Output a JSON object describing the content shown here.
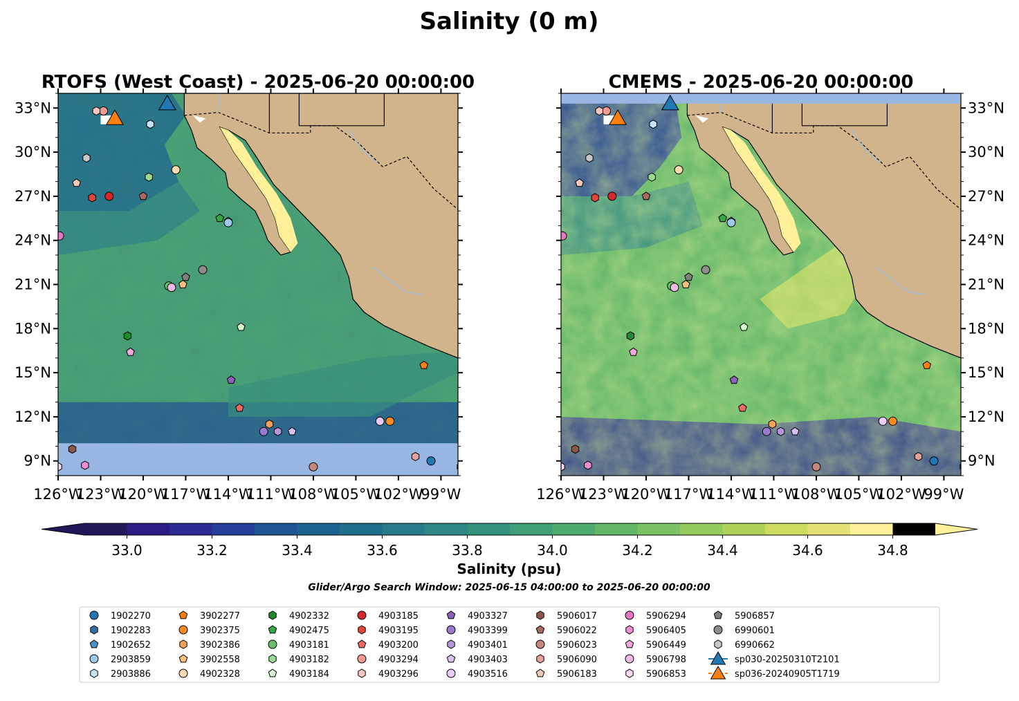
{
  "figure": {
    "suptitle": "Salinity (0 m)",
    "search_window": "Glider/Argo Search Window: 2025-06-15 04:00:00 to 2025-06-20 00:00:00"
  },
  "colors": {
    "land": "#d2b48c",
    "nodata": "#97b6e1",
    "rivers": "#a7bcd8",
    "scale": [
      "#221859",
      "#2b1b85",
      "#2c2b95",
      "#26409a",
      "#1f5494",
      "#1c6390",
      "#1f6f8b",
      "#277b8a",
      "#2e8787",
      "#34937f",
      "#3f9f77",
      "#4eab70",
      "#62b769",
      "#7ac263",
      "#94cb5d",
      "#afd35a",
      "#cddc5f",
      "#e3e277",
      "#fff09a"
    ]
  },
  "chart_data": [
    {
      "type": "heatmap",
      "title": "RTOFS (West Coast) - 2025-06-20 00:00:00",
      "xlim": [
        -126,
        -97.8
      ],
      "ylim": [
        8,
        34
      ],
      "x_ticks": [
        "126°W",
        "123°W",
        "120°W",
        "117°W",
        "114°W",
        "111°W",
        "108°W",
        "105°W",
        "102°W",
        "99°W"
      ],
      "y_ticks": [
        "9°N",
        "12°N",
        "15°N",
        "18°N",
        "21°N",
        "24°N",
        "27°N",
        "30°N",
        "33°N"
      ],
      "nodata_band_lat": [
        8,
        10.2
      ],
      "nodata_band_top_lat": null
    },
    {
      "type": "heatmap",
      "title": "CMEMS - 2025-06-20 00:00:00",
      "xlim": [
        -126,
        -97.8
      ],
      "ylim": [
        8,
        34
      ],
      "x_ticks": [
        "126°W",
        "123°W",
        "120°W",
        "117°W",
        "114°W",
        "111°W",
        "108°W",
        "105°W",
        "102°W",
        "99°W"
      ],
      "y_ticks": [
        "9°N",
        "12°N",
        "15°N",
        "18°N",
        "21°N",
        "24°N",
        "27°N",
        "30°N",
        "33°N"
      ],
      "nodata_band_lat": null,
      "nodata_band_top_lat": [
        33.3,
        34
      ]
    }
  ],
  "colorbar": {
    "label": "Salinity (psu)",
    "min": 32.9,
    "max": 34.9,
    "step": 0.1,
    "ticks": [
      "33.0",
      "33.2",
      "33.4",
      "33.6",
      "33.8",
      "34.0",
      "34.2",
      "34.4",
      "34.6",
      "34.8"
    ],
    "extend": "both"
  },
  "markers": [
    {
      "id": "1902270",
      "marker": "circle",
      "color": "#1f77b4",
      "lon": -99.7,
      "lat": 9.0
    },
    {
      "id": "1902283",
      "marker": "hexagon",
      "color": "#2f6fa6",
      "lon": -97.6,
      "lat": 8.6
    },
    {
      "id": "1902652",
      "marker": "pentagon",
      "color": "#4a90c8",
      "lon": -114.0,
      "lat": 25.3
    },
    {
      "id": "2903859",
      "marker": "circle",
      "color": "#9ec9ea",
      "lon": -114.0,
      "lat": 25.2
    },
    {
      "id": "2903886",
      "marker": "hexagon",
      "color": "#c7e3f7",
      "lon": -119.5,
      "lat": 31.9
    },
    {
      "id": "3902277",
      "marker": "pentagon",
      "color": "#ff7f0e",
      "lon": -100.2,
      "lat": 15.5
    },
    {
      "id": "3902375",
      "marker": "circle",
      "color": "#ff8a1f",
      "lon": -102.6,
      "lat": 11.7
    },
    {
      "id": "3902386",
      "marker": "hexagon",
      "color": "#f7a15a",
      "lon": -111.1,
      "lat": 11.5
    },
    {
      "id": "3902558",
      "marker": "pentagon",
      "color": "#fbbf7f",
      "lon": -117.2,
      "lat": 21.0
    },
    {
      "id": "4902328",
      "marker": "circle",
      "color": "#ffd9b0",
      "lon": -117.7,
      "lat": 28.8
    },
    {
      "id": "4902332",
      "marker": "hexagon",
      "color": "#1f8a2a",
      "lon": -121.1,
      "lat": 17.5
    },
    {
      "id": "4902475",
      "marker": "pentagon",
      "color": "#34a843",
      "lon": -114.6,
      "lat": 25.5
    },
    {
      "id": "4903181",
      "marker": "circle",
      "color": "#67c26a",
      "lon": -118.2,
      "lat": 20.9
    },
    {
      "id": "4903182",
      "marker": "hexagon",
      "color": "#98dc90",
      "lon": -119.6,
      "lat": 28.3
    },
    {
      "id": "4903184",
      "marker": "pentagon",
      "color": "#d4f5cc",
      "lon": -113.1,
      "lat": 18.1
    },
    {
      "id": "4903185",
      "marker": "circle",
      "color": "#d62728",
      "lon": -122.4,
      "lat": 27.0
    },
    {
      "id": "4903195",
      "marker": "hexagon",
      "color": "#e0453a",
      "lon": -123.6,
      "lat": 26.9
    },
    {
      "id": "4903200",
      "marker": "pentagon",
      "color": "#ec6a64",
      "lon": -113.2,
      "lat": 12.6
    },
    {
      "id": "4903294",
      "marker": "circle",
      "color": "#f59a90",
      "lon": -122.8,
      "lat": 32.8
    },
    {
      "id": "4903296",
      "marker": "hexagon",
      "color": "#fbc6bd",
      "lon": -123.3,
      "lat": 32.8
    },
    {
      "id": "4903327",
      "marker": "pentagon",
      "color": "#8a63b8",
      "lon": -113.8,
      "lat": 14.5
    },
    {
      "id": "4903399",
      "marker": "circle",
      "color": "#9b79cc",
      "lon": -111.5,
      "lat": 11.0
    },
    {
      "id": "4903401",
      "marker": "hexagon",
      "color": "#b596dd",
      "lon": -110.5,
      "lat": 11.0
    },
    {
      "id": "4903403",
      "marker": "pentagon",
      "color": "#d5c0ef",
      "lon": -109.5,
      "lat": 11.0
    },
    {
      "id": "4903516",
      "marker": "circle",
      "color": "#e6ccf7",
      "lon": -103.3,
      "lat": 11.7
    },
    {
      "id": "5906017",
      "marker": "hexagon",
      "color": "#8c564b",
      "lon": -125.0,
      "lat": 9.8
    },
    {
      "id": "5906022",
      "marker": "pentagon",
      "color": "#a46b5e",
      "lon": -120.0,
      "lat": 27.0
    },
    {
      "id": "5906023",
      "marker": "circle",
      "color": "#c4877b",
      "lon": -108.0,
      "lat": 8.6
    },
    {
      "id": "5906090",
      "marker": "hexagon",
      "color": "#e6a19a",
      "lon": -100.8,
      "lat": 9.3
    },
    {
      "id": "5906183",
      "marker": "pentagon",
      "color": "#f7c8b8",
      "lon": -124.7,
      "lat": 27.9
    },
    {
      "id": "5906294",
      "marker": "circle",
      "color": "#e377c2",
      "lon": -125.9,
      "lat": 24.3
    },
    {
      "id": "5906405",
      "marker": "hexagon",
      "color": "#ee8fd2",
      "lon": -124.1,
      "lat": 8.7
    },
    {
      "id": "5906449",
      "marker": "pentagon",
      "color": "#f3a7de",
      "lon": -120.9,
      "lat": 16.4
    },
    {
      "id": "5906798",
      "marker": "circle",
      "color": "#f7b9e6",
      "lon": -118.0,
      "lat": 20.8
    },
    {
      "id": "5906853",
      "marker": "hexagon",
      "color": "#fbd6f0",
      "lon": -126.0,
      "lat": 8.6
    },
    {
      "id": "5906857",
      "marker": "pentagon",
      "color": "#7f7f7f",
      "lon": -117.0,
      "lat": 21.5
    },
    {
      "id": "6990601",
      "marker": "circle",
      "color": "#8c8c8c",
      "lon": -115.8,
      "lat": 22.0
    },
    {
      "id": "6990662",
      "marker": "hexagon",
      "color": "#c7c7c7",
      "lon": -124.0,
      "lat": 29.6
    }
  ],
  "gliders": [
    {
      "id": "sp030-20250310T2101",
      "color": "#1f77b4",
      "lon": -118.3,
      "lat": 33.3
    },
    {
      "id": "sp036-20240905T1719",
      "color": "#ff7f0e",
      "lon": -122.0,
      "lat": 32.3
    }
  ],
  "legend_entries": [
    {
      "label": "1902270",
      "marker": "circle",
      "color": "#1f77b4"
    },
    {
      "label": "1902283",
      "marker": "hexagon",
      "color": "#2f6fa6"
    },
    {
      "label": "1902652",
      "marker": "pentagon",
      "color": "#4a90c8"
    },
    {
      "label": "2903859",
      "marker": "circle",
      "color": "#9ec9ea"
    },
    {
      "label": "2903886",
      "marker": "hexagon",
      "color": "#c7e3f7"
    },
    {
      "label": "3902277",
      "marker": "pentagon",
      "color": "#ff7f0e"
    },
    {
      "label": "3902375",
      "marker": "circle",
      "color": "#ff8a1f"
    },
    {
      "label": "3902386",
      "marker": "hexagon",
      "color": "#f7a15a"
    },
    {
      "label": "3902558",
      "marker": "pentagon",
      "color": "#fbbf7f"
    },
    {
      "label": "4902328",
      "marker": "circle",
      "color": "#ffd9b0"
    },
    {
      "label": "4902332",
      "marker": "hexagon",
      "color": "#1f8a2a"
    },
    {
      "label": "4902475",
      "marker": "pentagon",
      "color": "#34a843"
    },
    {
      "label": "4903181",
      "marker": "circle",
      "color": "#67c26a"
    },
    {
      "label": "4903182",
      "marker": "hexagon",
      "color": "#98dc90"
    },
    {
      "label": "4903184",
      "marker": "pentagon",
      "color": "#d4f5cc"
    },
    {
      "label": "4903185",
      "marker": "circle",
      "color": "#d62728"
    },
    {
      "label": "4903195",
      "marker": "hexagon",
      "color": "#e0453a"
    },
    {
      "label": "4903200",
      "marker": "pentagon",
      "color": "#ec6a64"
    },
    {
      "label": "4903294",
      "marker": "circle",
      "color": "#f59a90"
    },
    {
      "label": "4903296",
      "marker": "hexagon",
      "color": "#fbc6bd"
    },
    {
      "label": "4903327",
      "marker": "pentagon",
      "color": "#8a63b8"
    },
    {
      "label": "4903399",
      "marker": "circle",
      "color": "#9b79cc"
    },
    {
      "label": "4903401",
      "marker": "hexagon",
      "color": "#b596dd"
    },
    {
      "label": "4903403",
      "marker": "pentagon",
      "color": "#d5c0ef"
    },
    {
      "label": "4903516",
      "marker": "circle",
      "color": "#e6ccf7"
    },
    {
      "label": "5906017",
      "marker": "hexagon",
      "color": "#8c564b"
    },
    {
      "label": "5906022",
      "marker": "pentagon",
      "color": "#a46b5e"
    },
    {
      "label": "5906023",
      "marker": "circle",
      "color": "#c4877b"
    },
    {
      "label": "5906090",
      "marker": "hexagon",
      "color": "#e6a19a"
    },
    {
      "label": "5906183",
      "marker": "pentagon",
      "color": "#f7c8b8"
    },
    {
      "label": "5906294",
      "marker": "circle",
      "color": "#e377c2"
    },
    {
      "label": "5906405",
      "marker": "hexagon",
      "color": "#ee8fd2"
    },
    {
      "label": "5906449",
      "marker": "pentagon",
      "color": "#f3a7de"
    },
    {
      "label": "5906798",
      "marker": "circle",
      "color": "#f7b9e6"
    },
    {
      "label": "5906853",
      "marker": "hexagon",
      "color": "#fbd6f0"
    },
    {
      "label": "5906857",
      "marker": "pentagon",
      "color": "#7f7f7f"
    },
    {
      "label": "6990601",
      "marker": "circle",
      "color": "#8c8c8c"
    },
    {
      "label": "6990662",
      "marker": "hexagon",
      "color": "#c7c7c7"
    },
    {
      "label": "sp030-20250310T2101",
      "marker": "triangle",
      "color": "#1f77b4"
    },
    {
      "label": "sp036-20240905T1719",
      "marker": "triangle",
      "color": "#ff7f0e"
    }
  ]
}
